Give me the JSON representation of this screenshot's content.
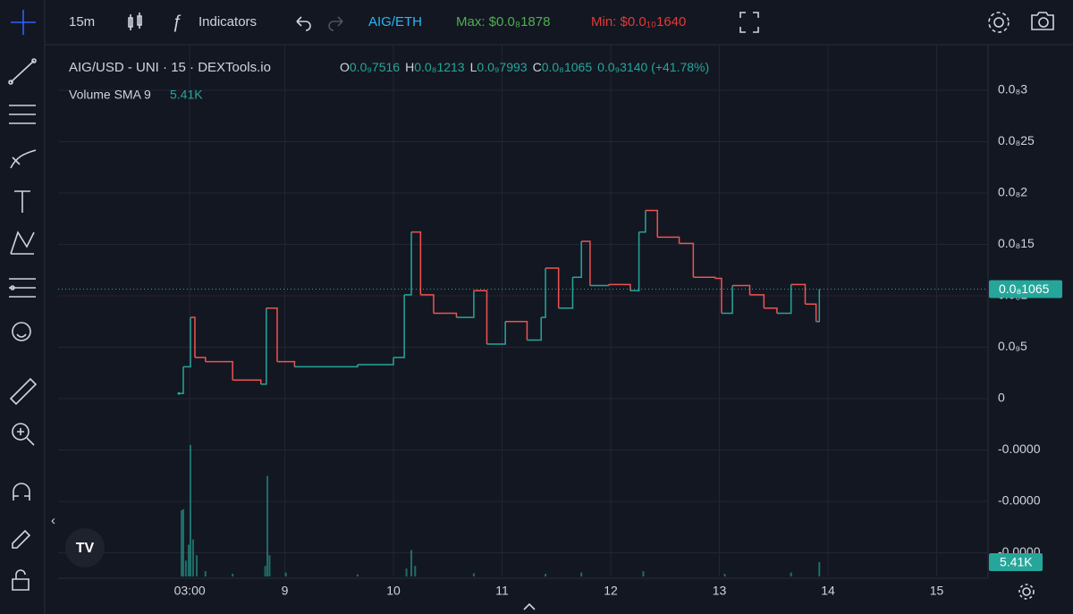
{
  "toolbar": {
    "interval": "15m",
    "indicators": "Indicators",
    "pair": "AIG/ETH",
    "max": "Max: $0.0₈1878",
    "min": "Min: $0.0₁₀1640"
  },
  "legend": {
    "symbol": "AIG/USD - UNI",
    "interval": "15",
    "source": "DEXTools.io",
    "ohlc": [
      {
        "key": "O",
        "value": "0.0₉7516"
      },
      {
        "key": "H",
        "value": "0.0₈1213"
      },
      {
        "key": "L",
        "value": "0.0₉7993"
      },
      {
        "key": "C",
        "value": "0.0₈1065"
      }
    ],
    "change": "0.0₉3140 (+41.78%)",
    "volume_name": "Volume SMA 9",
    "volume_value": "5.41K"
  },
  "chart_data": {
    "type": "line",
    "xlim": [
      6.914,
      15.473
    ],
    "xticks": [
      {
        "value": 8.125,
        "label": "03:00"
      },
      9,
      10,
      11,
      12,
      13,
      14,
      15
    ],
    "ylim": [
      -1.73e-09,
      3.443e-09
    ],
    "yticks": [
      {
        "value": 3e-09,
        "label": "0.0₈3"
      },
      {
        "value": 2.5e-09,
        "label": "0.0₈25"
      },
      {
        "value": 2e-09,
        "label": "0.0₈2"
      },
      {
        "value": 1.5e-09,
        "label": "0.0₈15"
      },
      {
        "value": 1e-09,
        "label": "0.0₈1"
      },
      {
        "value": 5e-10,
        "label": "0.0₉5"
      },
      0,
      {
        "value": -5e-10,
        "label": "-0.0000"
      },
      {
        "value": -1e-09,
        "label": "-0.0000"
      },
      {
        "value": -1.5e-09,
        "label": "-0.0000"
      }
    ],
    "grid": true,
    "up_color": "#26a69a",
    "down_color": "#ef5350",
    "x": [
      8.025,
      8.066,
      8.132,
      8.173,
      8.27,
      8.52,
      8.78,
      8.83,
      8.93,
      9.09,
      9.67,
      10.0,
      10.1,
      10.165,
      10.25,
      10.37,
      10.58,
      10.74,
      10.86,
      11.03,
      11.23,
      11.36,
      11.4,
      11.52,
      11.65,
      11.73,
      11.81,
      11.98,
      12.18,
      12.26,
      12.32,
      12.43,
      12.63,
      12.76,
      12.96,
      13.02,
      13.12,
      13.28,
      13.41,
      13.53,
      13.66,
      13.79,
      13.89,
      13.92
    ],
    "values": [
      5e-11,
      3.1e-10,
      7.9e-10,
      4e-10,
      3.6e-10,
      1.8e-10,
      1.4e-10,
      8.8e-10,
      3.6e-10,
      3.1e-10,
      3.3e-10,
      4e-10,
      1.01e-09,
      1.62e-09,
      1.01e-09,
      8.3e-10,
      7.9e-10,
      1.05e-09,
      5.3e-10,
      7.5e-10,
      5.7e-10,
      7.9e-10,
      1.27e-09,
      8.8e-10,
      1.18e-09,
      1.53e-09,
      1.1e-09,
      1.11e-09,
      1.05e-09,
      1.62e-09,
      1.83e-09,
      1.57e-09,
      1.51e-09,
      1.18e-09,
      1.17e-09,
      8.3e-10,
      1.1e-09,
      1.01e-09,
      8.8e-10,
      8.3e-10,
      1.11e-09,
      9.2e-10,
      7.5e-10,
      1.065e-09
    ],
    "last_price": {
      "value": 1.065e-09,
      "label": "0.0₈1065"
    },
    "volume": {
      "color": "#26a69a",
      "ylim": [
        0,
        60500
      ],
      "last_label": "5.41K",
      "x": [
        8.05,
        8.066,
        8.09,
        8.115,
        8.132,
        8.156,
        8.19,
        8.27,
        8.52,
        8.82,
        8.84,
        8.86,
        9.01,
        9.67,
        10.12,
        10.165,
        10.2,
        10.74,
        11.4,
        11.73,
        12.3,
        13.05,
        13.66,
        13.92
      ],
      "values": [
        25000,
        25400,
        6000,
        12000,
        49700,
        14000,
        8000,
        2000,
        1000,
        4000,
        38000,
        8000,
        1500,
        800,
        3000,
        10000,
        4000,
        1200,
        1000,
        1500,
        2000,
        1000,
        1500,
        5410
      ]
    }
  }
}
